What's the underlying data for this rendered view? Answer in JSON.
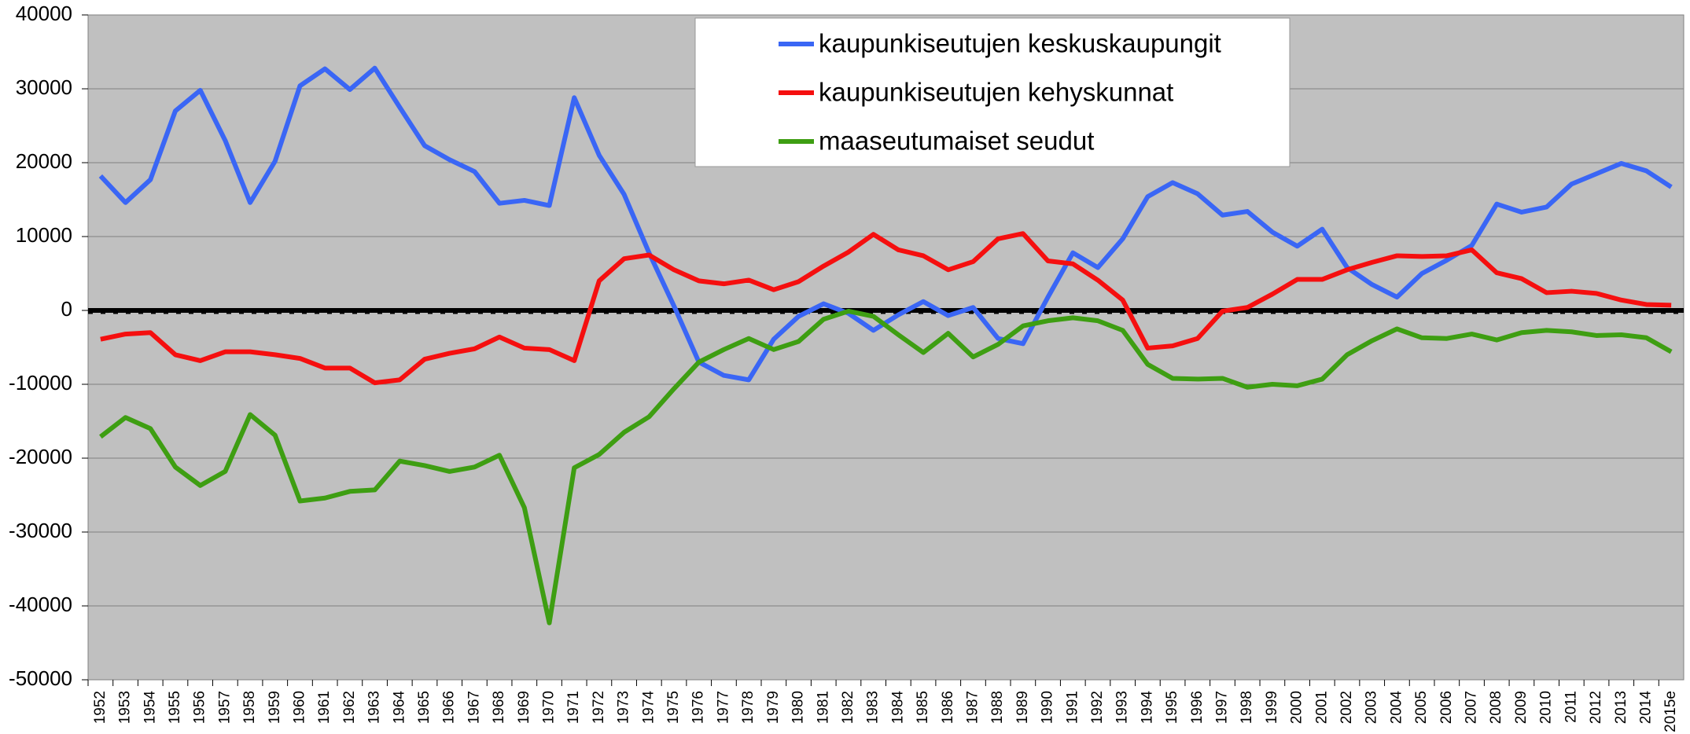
{
  "chart_data": {
    "type": "line",
    "categories": [
      "1952",
      "1953",
      "1954",
      "1955",
      "1956",
      "1957",
      "1958",
      "1959",
      "1960",
      "1961",
      "1962",
      "1963",
      "1964",
      "1965",
      "1966",
      "1967",
      "1968",
      "1969",
      "1970",
      "1971",
      "1972",
      "1973",
      "1974",
      "1975",
      "1976",
      "1977",
      "1978",
      "1979",
      "1980",
      "1981",
      "1982",
      "1983",
      "1984",
      "1985",
      "1986",
      "1987",
      "1988",
      "1989",
      "1990",
      "1991",
      "1992",
      "1993",
      "1994",
      "1995",
      "1996",
      "1997",
      "1998",
      "1999",
      "2000",
      "2001",
      "2002",
      "2003",
      "2004",
      "2005",
      "2006",
      "2007",
      "2008",
      "2009",
      "2010",
      "2011",
      "2012",
      "2013",
      "2014",
      "2015e"
    ],
    "series": [
      {
        "name": "kaupunkiseutujen keskuskaupungit",
        "color": "#3a66f5",
        "values": [
          18200,
          14600,
          17700,
          27000,
          29800,
          23000,
          14600,
          20200,
          30400,
          32700,
          29900,
          32800,
          27500,
          22300,
          20400,
          18800,
          14500,
          14900,
          14200,
          28800,
          21000,
          15700,
          7800,
          600,
          -7000,
          -8800,
          -9400,
          -3900,
          -800,
          900,
          -400,
          -2700,
          -600,
          1200,
          -700,
          400,
          -3800,
          -4500,
          1800,
          7800,
          5800,
          9700,
          15400,
          17300,
          15800,
          12900,
          13400,
          10600,
          8700,
          11000,
          5800,
          3500,
          1800,
          5000,
          6800,
          8800,
          14400,
          13300,
          14000,
          17100,
          18500,
          19900,
          18900,
          16700
        ]
      },
      {
        "name": "kaupunkiseutujen kehyskunnat",
        "color": "#f50f0f",
        "values": [
          -3900,
          -3200,
          -3000,
          -6000,
          -6800,
          -5600,
          -5600,
          -6000,
          -6500,
          -7800,
          -7800,
          -9800,
          -9400,
          -6600,
          -5800,
          -5200,
          -3600,
          -5100,
          -5300,
          -6800,
          4000,
          7000,
          7500,
          5500,
          4000,
          3600,
          4100,
          2800,
          3900,
          6000,
          7900,
          10300,
          8200,
          7400,
          5500,
          6600,
          9700,
          10400,
          6700,
          6300,
          4100,
          1400,
          -5100,
          -4800,
          -3800,
          -100,
          400,
          2200,
          4200,
          4200,
          5500,
          6500,
          7400,
          7300,
          7400,
          8200,
          5100,
          4300,
          2400,
          2600,
          2300,
          1400,
          800,
          700
        ]
      },
      {
        "name": "maaseutumaiset seudut",
        "color": "#3e9e12",
        "values": [
          -17100,
          -14500,
          -16000,
          -21200,
          -23700,
          -21800,
          -14100,
          -16900,
          -25800,
          -25400,
          -24500,
          -24300,
          -20400,
          -21000,
          -21800,
          -21200,
          -19600,
          -26700,
          -42300,
          -21300,
          -19500,
          -16500,
          -14400,
          -10600,
          -7000,
          -5300,
          -3800,
          -5300,
          -4200,
          -1200,
          -100,
          -800,
          -3300,
          -5700,
          -3100,
          -6300,
          -4600,
          -2100,
          -1400,
          -1000,
          -1400,
          -2700,
          -7300,
          -9200,
          -9300,
          -9200,
          -10400,
          -10000,
          -10200,
          -9300,
          -6000,
          -4100,
          -2500,
          -3700,
          -3800,
          -3200,
          -4000,
          -3000,
          -2700,
          -2900,
          -3400,
          -3300,
          -3700,
          -5600
        ]
      }
    ],
    "ylim": [
      -50000,
      40000
    ],
    "yticks": [
      -50000,
      -40000,
      -30000,
      -20000,
      -10000,
      0,
      10000,
      20000,
      30000,
      40000
    ],
    "grid": true,
    "legend": "top"
  }
}
